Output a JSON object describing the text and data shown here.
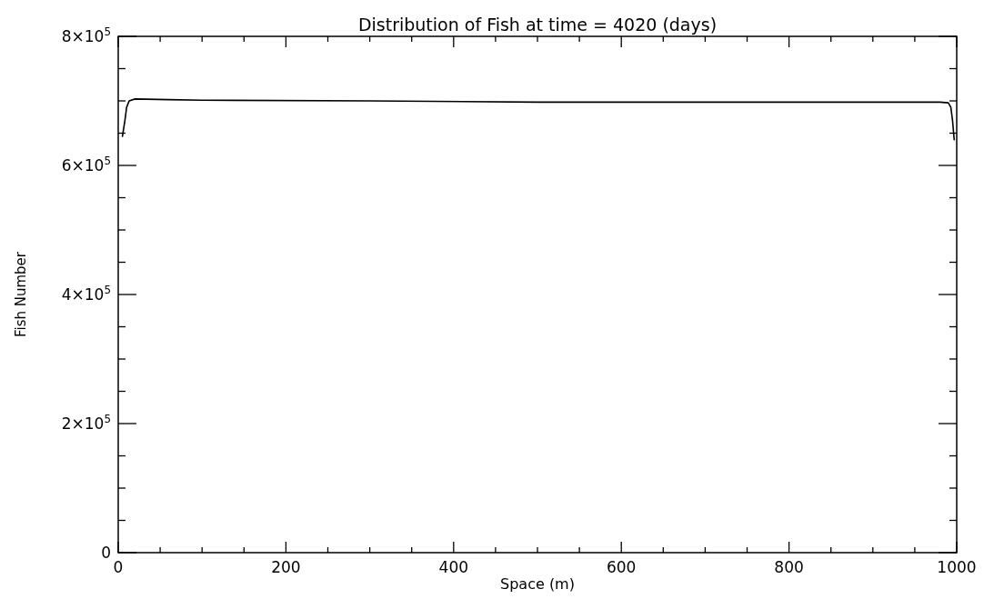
{
  "chart_data": {
    "type": "line",
    "title": "Distribution of Fish at time = 4020 (days)",
    "xlabel": "Space (m)",
    "ylabel": "Fish Number",
    "x": [
      5,
      8,
      10,
      13,
      20,
      60,
      100,
      300,
      500,
      700,
      900,
      980,
      990,
      993,
      995,
      997
    ],
    "series": [
      {
        "color": "#000000",
        "values": [
          645000,
          670000,
          690000,
          700000,
          703000,
          702000,
          701000,
          700000,
          698000,
          698000,
          698000,
          698000,
          697000,
          690000,
          670000,
          640000
        ]
      }
    ],
    "xlim": [
      0,
      1000
    ],
    "xticks": [
      0,
      {
        "value": 50,
        "label": null
      },
      {
        "value": 100,
        "label": null
      },
      {
        "value": 150,
        "label": null
      },
      200,
      {
        "value": 250,
        "label": null
      },
      {
        "value": 300,
        "label": null
      },
      {
        "value": 350,
        "label": null
      },
      400,
      {
        "value": 450,
        "label": null
      },
      {
        "value": 500,
        "label": null
      },
      {
        "value": 550,
        "label": null
      },
      600,
      {
        "value": 650,
        "label": null
      },
      {
        "value": 700,
        "label": null
      },
      {
        "value": 750,
        "label": null
      },
      800,
      {
        "value": 850,
        "label": null
      },
      {
        "value": 900,
        "label": null
      },
      {
        "value": 950,
        "label": null
      },
      1000
    ],
    "ylim": [
      0,
      800000
    ],
    "yticks": [
      {
        "value": 0,
        "label": "0"
      },
      {
        "value": 50000,
        "label": null
      },
      {
        "value": 100000,
        "label": null
      },
      {
        "value": 150000,
        "label": null
      },
      {
        "value": 200000,
        "label": "2×10$^{5}$"
      },
      {
        "value": 250000,
        "label": null
      },
      {
        "value": 300000,
        "label": null
      },
      {
        "value": 350000,
        "label": null
      },
      {
        "value": 400000,
        "label": "4×10$^{5}$"
      },
      {
        "value": 450000,
        "label": null
      },
      {
        "value": 500000,
        "label": null
      },
      {
        "value": 550000,
        "label": null
      },
      {
        "value": 600000,
        "label": "6×10$^{5}$"
      },
      {
        "value": 650000,
        "label": null
      },
      {
        "value": 700000,
        "label": null
      },
      {
        "value": 750000,
        "label": null
      },
      {
        "value": 800000,
        "label": "8×10$^{5}$"
      }
    ],
    "marker": "none",
    "line_style": "solid"
  }
}
